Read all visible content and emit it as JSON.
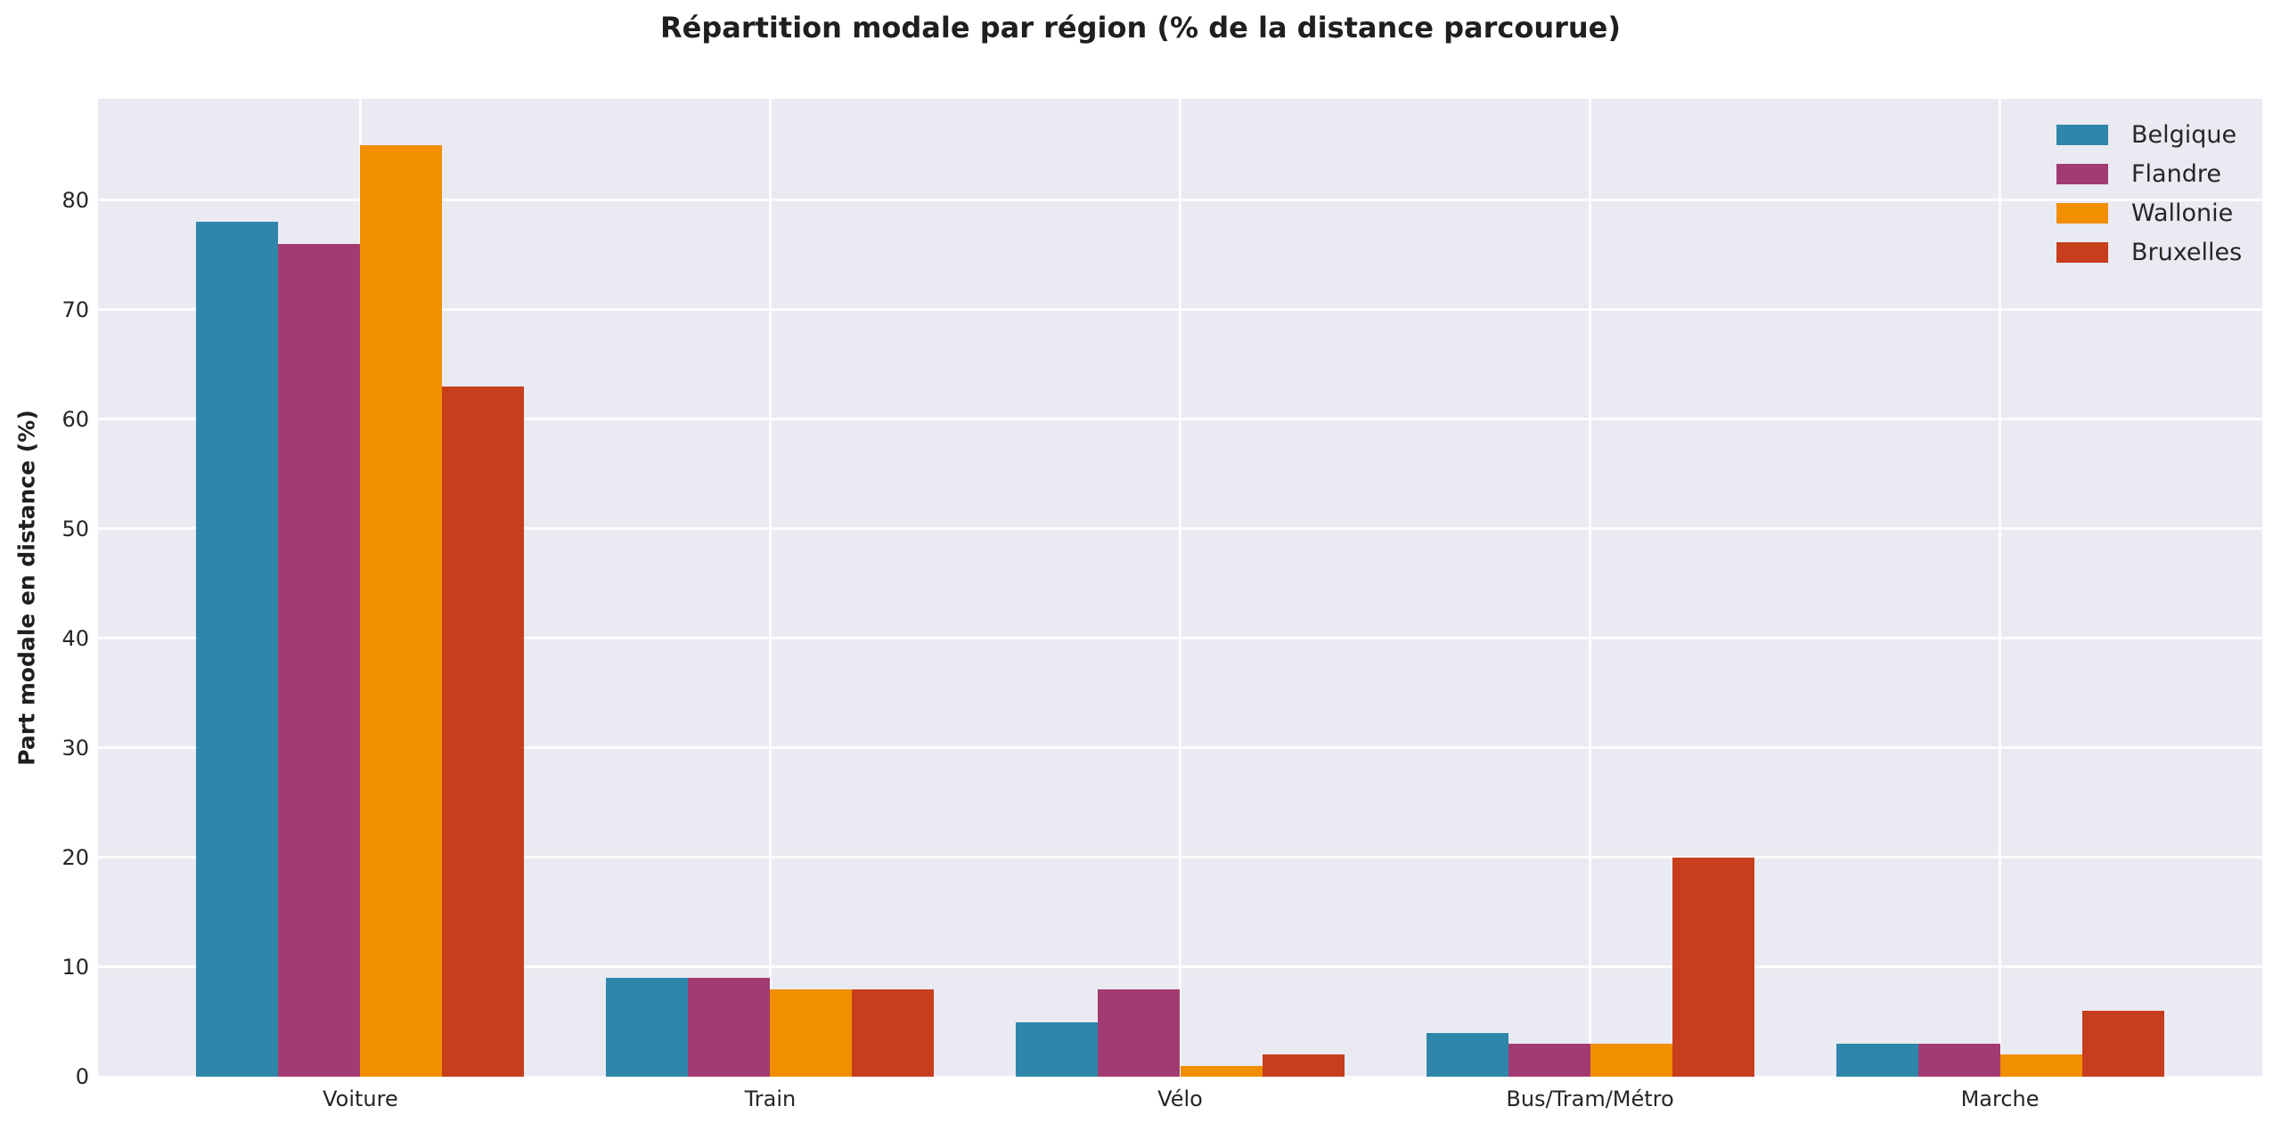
{
  "chart_data": {
    "type": "bar",
    "title": "Répartition modale par région (% de la distance parcourue)",
    "xlabel": "",
    "ylabel": "Part modale en distance (%)",
    "categories": [
      "Voiture",
      "Train",
      "Vélo",
      "Bus/Tram/Métro",
      "Marche"
    ],
    "series": [
      {
        "name": "Belgique",
        "color": "#2E86AB",
        "values": [
          78,
          9,
          5,
          4,
          3
        ]
      },
      {
        "name": "Flandre",
        "color": "#A23B72",
        "values": [
          76,
          9,
          8,
          3,
          3
        ]
      },
      {
        "name": "Wallonie",
        "color": "#F18F01",
        "values": [
          85,
          8,
          1,
          3,
          2
        ]
      },
      {
        "name": "Bruxelles",
        "color": "#C73E1D",
        "values": [
          63,
          8,
          2,
          20,
          6
        ]
      }
    ],
    "yticks": [
      0,
      10,
      20,
      30,
      40,
      50,
      60,
      70,
      80
    ],
    "ylim": [
      0,
      89.25
    ],
    "grid": true,
    "legend_position": "upper right",
    "plot_background": "#EAEAF2",
    "grid_color": "#FFFFFF",
    "text_color": "#262626"
  }
}
